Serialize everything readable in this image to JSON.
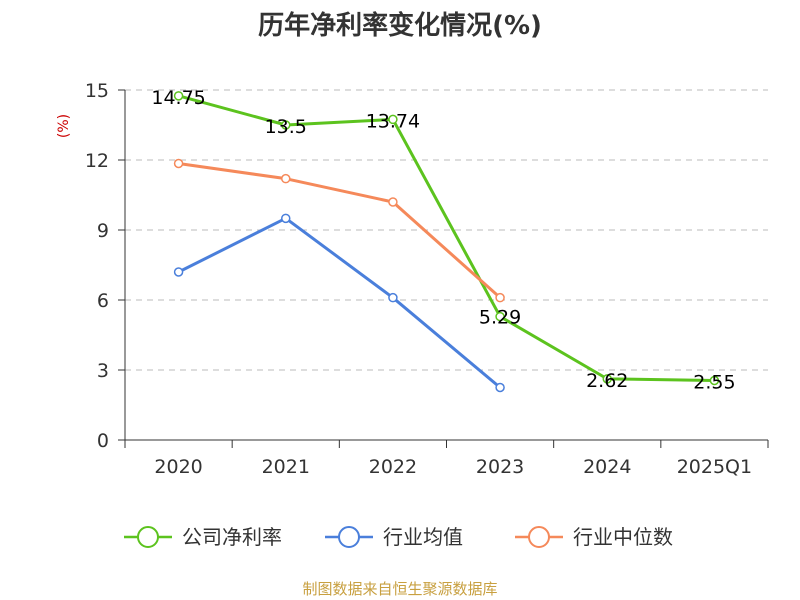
{
  "chart_data": {
    "type": "line",
    "title": "历年净利率变化情况(%)",
    "ylabel": "(%)",
    "xlabel": "",
    "categories": [
      "2020",
      "2021",
      "2022",
      "2023",
      "2024",
      "2025Q1"
    ],
    "yticks": [
      "0",
      "3",
      "6",
      "9",
      "12",
      "15"
    ],
    "ylim": [
      0,
      15
    ],
    "grid": true,
    "legend_position": "bottom",
    "series": [
      {
        "name": "公司净利率",
        "color": "#5cc31e",
        "values": [
          14.75,
          13.5,
          13.74,
          5.29,
          2.62,
          2.55
        ],
        "labels": [
          "14.75",
          "13.5",
          "13.74",
          "5.29",
          "2.62",
          "2.55"
        ]
      },
      {
        "name": "行业均值",
        "color": "#4a7fdb",
        "values": [
          7.2,
          9.5,
          6.1,
          2.25,
          null,
          null
        ]
      },
      {
        "name": "行业中位数",
        "color": "#f5895a",
        "values": [
          11.85,
          11.2,
          10.2,
          6.1,
          null,
          null
        ]
      }
    ]
  },
  "source_text": "制图数据来自恒生聚源数据库"
}
